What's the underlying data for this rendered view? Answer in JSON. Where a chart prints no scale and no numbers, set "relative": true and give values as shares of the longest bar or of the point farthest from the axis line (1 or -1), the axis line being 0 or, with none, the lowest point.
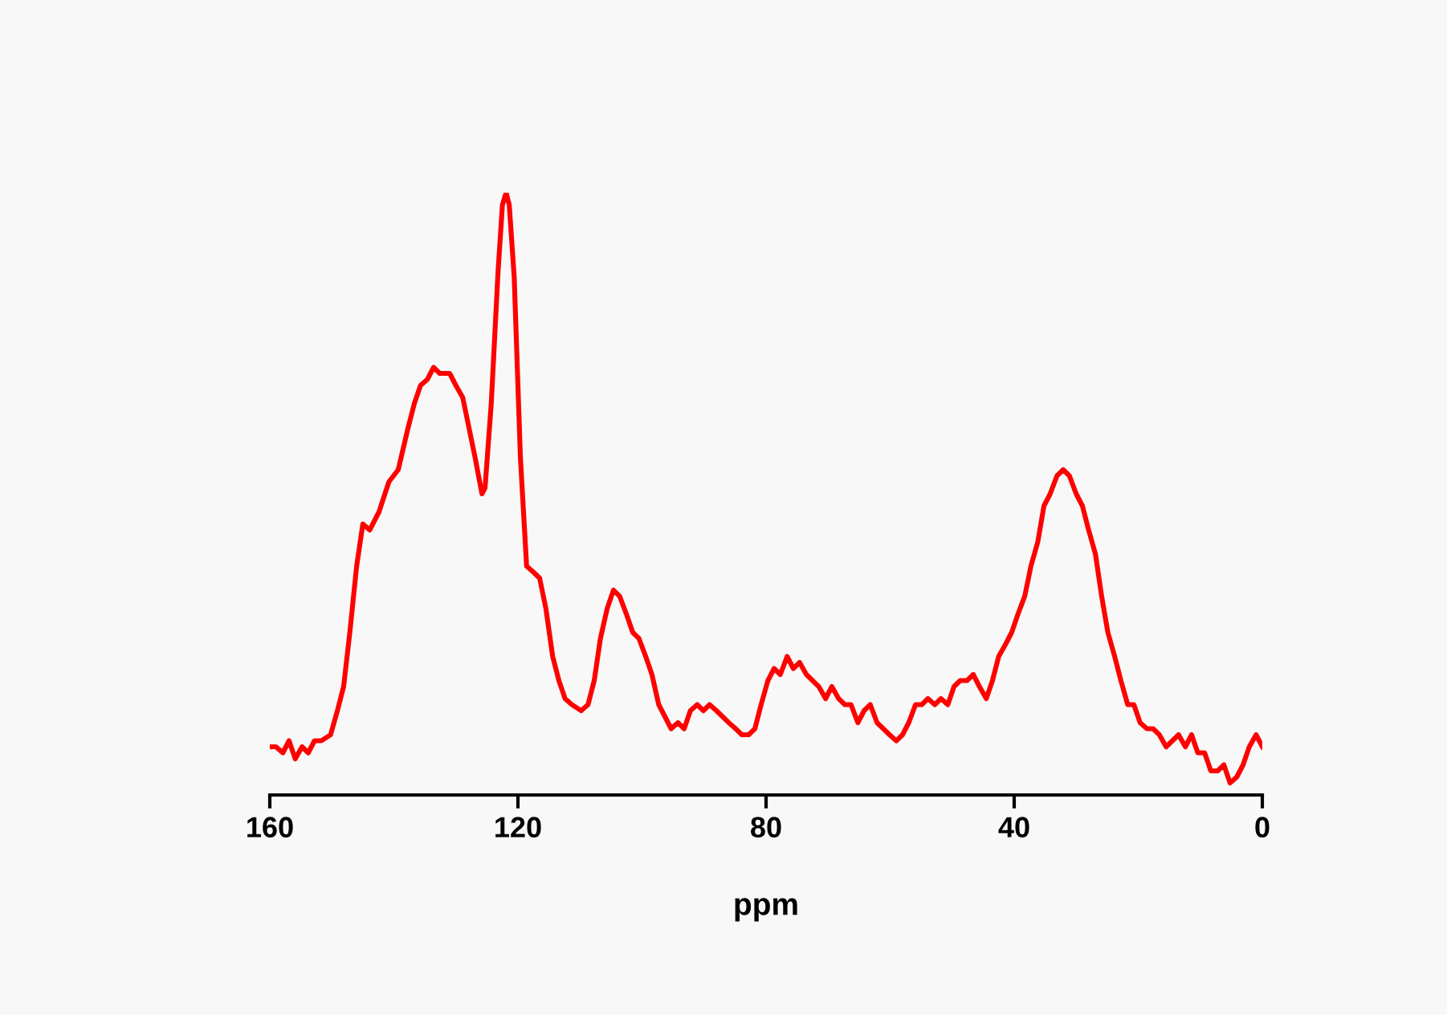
{
  "chart_data": {
    "type": "line",
    "xlabel": "ppm",
    "relative": true,
    "xlim": [
      160,
      0
    ],
    "xticks": [
      160,
      120,
      80,
      40,
      0
    ],
    "grid": false,
    "legend": false,
    "marker": "none",
    "line_style": "solid",
    "series": [
      {
        "color": "#ff0000",
        "x": [
          160,
          159.0,
          157.9,
          156.9,
          155.9,
          154.8,
          153.8,
          152.8,
          151.7,
          150.2,
          149.1,
          148.1,
          147.1,
          146.0,
          145.0,
          143.9,
          142.4,
          140.8,
          139.3,
          137.7,
          136.7,
          135.7,
          134.6,
          133.6,
          132.6,
          131.0,
          130.0,
          128.9,
          127.9,
          126.9,
          125.8,
          125.3,
          124.3,
          123.2,
          122.5,
          121.9,
          121.4,
          120.6,
          119.6,
          118.6,
          117.5,
          116.5,
          115.5,
          114.4,
          113.4,
          112.4,
          111.3,
          109.8,
          108.7,
          107.7,
          106.7,
          105.6,
          104.6,
          103.6,
          102.5,
          101.5,
          100.5,
          99.4,
          98.4,
          97.3,
          96.3,
          95.3,
          94.2,
          93.2,
          92.2,
          91.1,
          90.1,
          89.1,
          88.0,
          87.0,
          86.0,
          84.9,
          83.9,
          82.8,
          81.8,
          80.8,
          79.7,
          78.7,
          77.7,
          76.6,
          75.6,
          74.6,
          73.5,
          72.5,
          71.5,
          70.4,
          69.4,
          68.3,
          67.3,
          66.3,
          65.2,
          64.2,
          63.2,
          62.1,
          61.1,
          60.1,
          59.0,
          58.0,
          57.0,
          55.9,
          54.9,
          53.9,
          52.8,
          51.8,
          50.7,
          49.7,
          48.7,
          47.6,
          46.6,
          45.6,
          44.5,
          43.5,
          42.5,
          41.4,
          40.4,
          39.4,
          38.3,
          37.3,
          36.2,
          35.2,
          34.2,
          33.1,
          32.1,
          31.1,
          30.0,
          29.0,
          28.0,
          26.9,
          25.9,
          24.9,
          23.8,
          22.8,
          21.7,
          20.7,
          19.7,
          18.6,
          17.6,
          16.6,
          15.5,
          14.5,
          13.5,
          12.4,
          11.4,
          10.4,
          9.3,
          8.3,
          7.2,
          6.2,
          5.2,
          4.1,
          3.1,
          2.1,
          1.0,
          0
        ],
        "values": [
          0.08,
          0.08,
          0.07,
          0.09,
          0.06,
          0.08,
          0.07,
          0.09,
          0.09,
          0.1,
          0.14,
          0.18,
          0.27,
          0.38,
          0.45,
          0.44,
          0.47,
          0.52,
          0.54,
          0.61,
          0.65,
          0.68,
          0.69,
          0.71,
          0.7,
          0.7,
          0.68,
          0.66,
          0.61,
          0.56,
          0.5,
          0.51,
          0.65,
          0.87,
          0.98,
          1,
          0.98,
          0.86,
          0.56,
          0.38,
          0.37,
          0.36,
          0.31,
          0.23,
          0.19,
          0.16,
          0.15,
          0.14,
          0.15,
          0.19,
          0.26,
          0.31,
          0.34,
          0.33,
          0.3,
          0.27,
          0.26,
          0.23,
          0.2,
          0.15,
          0.13,
          0.11,
          0.12,
          0.11,
          0.14,
          0.15,
          0.14,
          0.15,
          0.14,
          0.13,
          0.12,
          0.11,
          0.1,
          0.1,
          0.11,
          0.15,
          0.19,
          0.21,
          0.2,
          0.23,
          0.21,
          0.22,
          0.2,
          0.19,
          0.18,
          0.16,
          0.18,
          0.16,
          0.15,
          0.15,
          0.12,
          0.14,
          0.15,
          0.12,
          0.11,
          0.1,
          0.09,
          0.1,
          0.12,
          0.15,
          0.15,
          0.16,
          0.15,
          0.16,
          0.15,
          0.18,
          0.19,
          0.19,
          0.2,
          0.18,
          0.16,
          0.19,
          0.23,
          0.25,
          0.27,
          0.3,
          0.33,
          0.38,
          0.42,
          0.48,
          0.5,
          0.53,
          0.54,
          0.53,
          0.5,
          0.48,
          0.44,
          0.4,
          0.33,
          0.27,
          0.23,
          0.19,
          0.15,
          0.15,
          0.12,
          0.11,
          0.11,
          0.1,
          0.08,
          0.09,
          0.1,
          0.08,
          0.1,
          0.07,
          0.07,
          0.04,
          0.04,
          0.05,
          0.02,
          0.03,
          0.05,
          0.08,
          0.1,
          0.08
        ]
      }
    ]
  }
}
